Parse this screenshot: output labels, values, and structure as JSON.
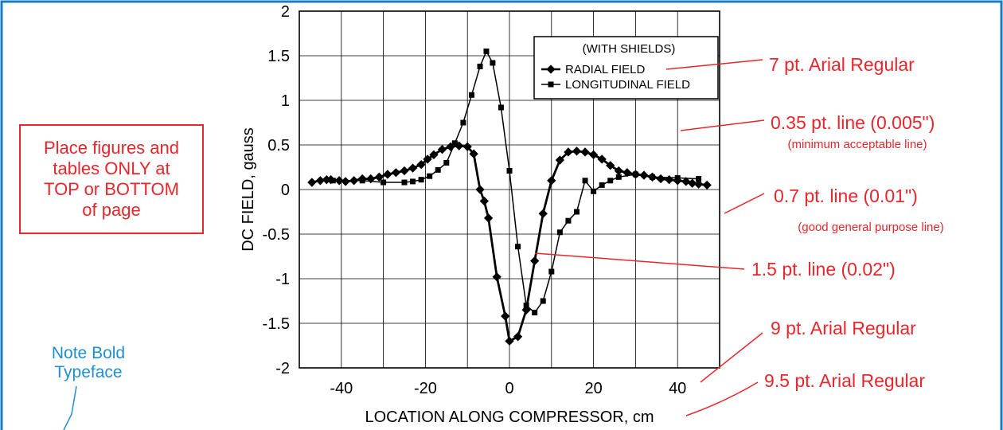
{
  "colors": {
    "frame": "#1a7cc2",
    "annotation": "#e8262b",
    "note": "#1f8fd0",
    "axes": "#000000",
    "grid": "#000000"
  },
  "note_box": {
    "text": "Place figures and\ntables ONLY at\nTOP or BOTTOM\nof page"
  },
  "bold_note": {
    "text": "Note Bold\nTypeface"
  },
  "annotations": [
    {
      "id": "font-legend",
      "text": "7 pt. Arial Regular",
      "subtext": ""
    },
    {
      "id": "grid-line",
      "text": "0.35 pt. line (0.005\")",
      "subtext": "(minimum acceptable line)"
    },
    {
      "id": "frame-line",
      "text": "0.7 pt. line (0.01\")",
      "subtext": "(good general purpose line)"
    },
    {
      "id": "data-line",
      "text": "1.5 pt. line (0.02\")",
      "subtext": ""
    },
    {
      "id": "font-ticks",
      "text": "9 pt. Arial Regular",
      "subtext": ""
    },
    {
      "id": "font-axis",
      "text": "9.5 pt. Arial Regular",
      "subtext": ""
    }
  ],
  "chart_data": {
    "type": "line",
    "title": "",
    "xlabel": "LOCATION ALONG COMPRESSOR,  cm",
    "ylabel": "DC FIELD,  gauss",
    "xlim": [
      -50,
      50
    ],
    "ylim": [
      -2,
      2
    ],
    "xticks": [
      -40,
      -20,
      0,
      20,
      40
    ],
    "yticks": [
      -2,
      -1.5,
      -1,
      -0.5,
      0,
      0.5,
      1,
      1.5,
      2
    ],
    "grid": true,
    "grid_x": [
      -50,
      -40,
      -30,
      -20,
      -10,
      0,
      10,
      20,
      30,
      40,
      50
    ],
    "legend": {
      "title": "(WITH SHIELDS)",
      "position": "top-right"
    },
    "series": [
      {
        "name": "RADIAL FIELD",
        "marker": "diamond",
        "line": "thick",
        "points": [
          [
            -47,
            0.08
          ],
          [
            -45,
            0.1
          ],
          [
            -43.5,
            0.11
          ],
          [
            -42.5,
            0.11
          ],
          [
            -40.5,
            0.1
          ],
          [
            -39,
            0.09
          ],
          [
            -37,
            0.1
          ],
          [
            -35,
            0.12
          ],
          [
            -33,
            0.12
          ],
          [
            -31,
            0.14
          ],
          [
            -29,
            0.17
          ],
          [
            -27,
            0.19
          ],
          [
            -25,
            0.21
          ],
          [
            -23,
            0.24
          ],
          [
            -21,
            0.28
          ],
          [
            -19.5,
            0.34
          ],
          [
            -18,
            0.39
          ],
          [
            -16,
            0.45
          ],
          [
            -14,
            0.48
          ],
          [
            -12,
            0.49
          ],
          [
            -10,
            0.48
          ],
          [
            -8.5,
            0.4
          ],
          [
            -7,
            0.0
          ],
          [
            -6,
            -0.13
          ],
          [
            -5,
            -0.32
          ],
          [
            -3,
            -0.98
          ],
          [
            -1,
            -1.42
          ],
          [
            0,
            -1.7
          ],
          [
            2,
            -1.65
          ],
          [
            4,
            -1.35
          ],
          [
            6,
            -0.8
          ],
          [
            8,
            -0.27
          ],
          [
            10,
            0.1
          ],
          [
            12,
            0.33
          ],
          [
            14,
            0.42
          ],
          [
            16,
            0.43
          ],
          [
            18,
            0.42
          ],
          [
            20,
            0.39
          ],
          [
            22,
            0.34
          ],
          [
            24,
            0.27
          ],
          [
            26,
            0.21
          ],
          [
            28,
            0.19
          ],
          [
            30,
            0.17
          ],
          [
            32,
            0.16
          ],
          [
            34,
            0.14
          ],
          [
            36,
            0.12
          ],
          [
            38,
            0.11
          ],
          [
            40,
            0.1
          ],
          [
            42,
            0.09
          ],
          [
            43.5,
            0.07
          ],
          [
            45,
            0.06
          ],
          [
            47,
            0.05
          ]
        ]
      },
      {
        "name": "LONGITUDINAL FIELD",
        "marker": "square",
        "line": "thin",
        "points": [
          [
            -42,
            0.1
          ],
          [
            -35,
            0.1
          ],
          [
            -30,
            0.08
          ],
          [
            -25,
            0.08
          ],
          [
            -23,
            0.09
          ],
          [
            -21,
            0.11
          ],
          [
            -19,
            0.15
          ],
          [
            -17,
            0.22
          ],
          [
            -15,
            0.3
          ],
          [
            -13,
            0.52
          ],
          [
            -11,
            0.75
          ],
          [
            -9,
            1.06
          ],
          [
            -7,
            1.38
          ],
          [
            -5.5,
            1.55
          ],
          [
            -4,
            1.42
          ],
          [
            -2,
            0.92
          ],
          [
            0,
            0.21
          ],
          [
            2,
            -0.64
          ],
          [
            4,
            -1.3
          ],
          [
            6,
            -1.38
          ],
          [
            8,
            -1.25
          ],
          [
            10,
            -0.92
          ],
          [
            12,
            -0.48
          ],
          [
            14,
            -0.35
          ],
          [
            16,
            -0.25
          ],
          [
            18,
            0.1
          ],
          [
            20,
            -0.02
          ],
          [
            22,
            0.05
          ],
          [
            24,
            0.1
          ],
          [
            26,
            0.14
          ],
          [
            30,
            0.17
          ],
          [
            34,
            0.14
          ],
          [
            40,
            0.13
          ],
          [
            45,
            0.12
          ]
        ]
      }
    ]
  }
}
